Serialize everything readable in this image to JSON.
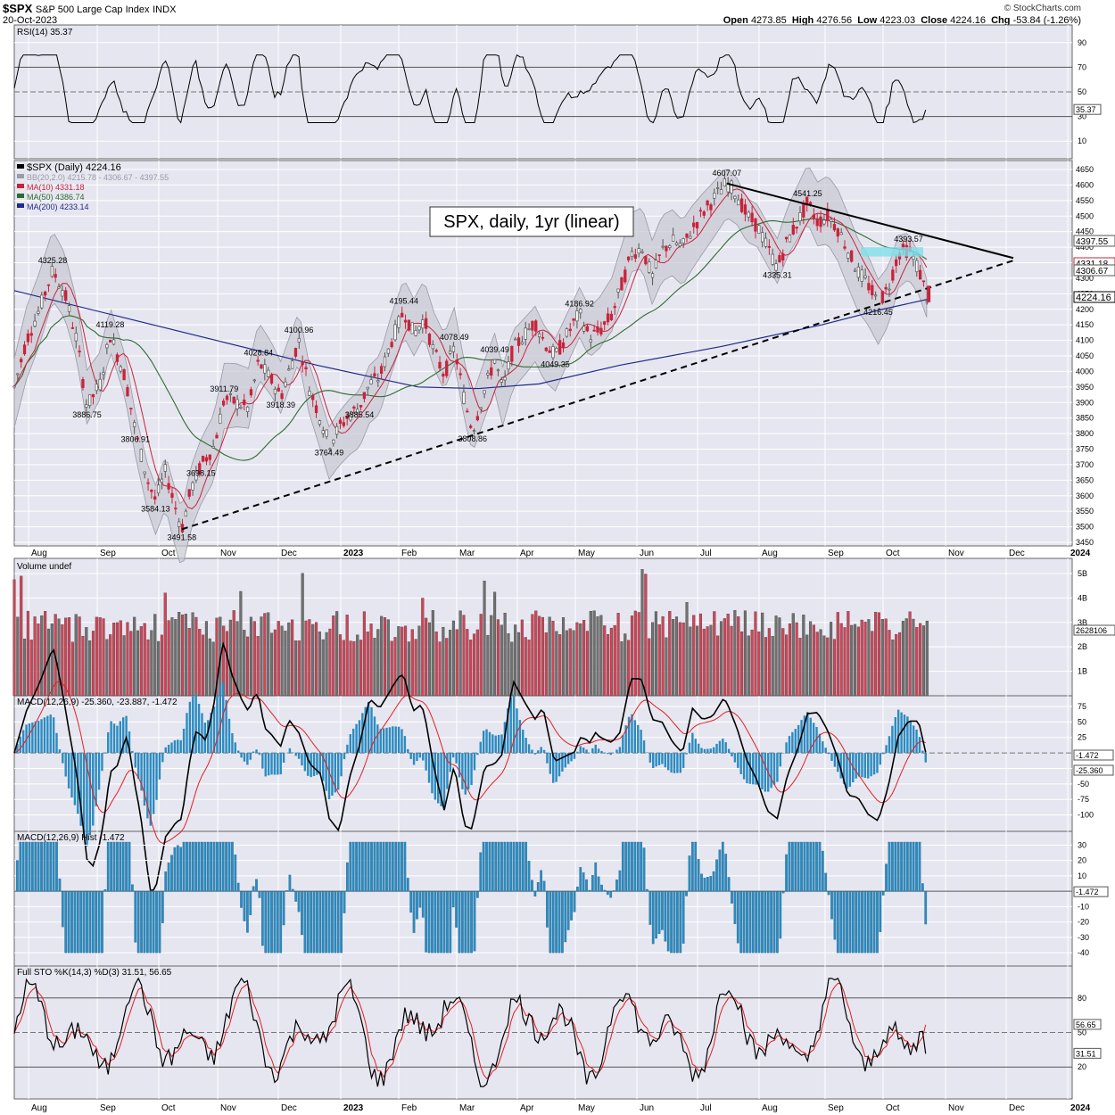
{
  "header": {
    "symbol": "$SPX",
    "description": "S&P 500 Large Cap Index",
    "exchange": "INDX",
    "date": "20-Oct-2023",
    "open_label": "Open",
    "open": "4273.85",
    "high_label": "High",
    "high": "4276.56",
    "low_label": "Low",
    "low": "4223.03",
    "close_label": "Close",
    "close": "4224.16",
    "chg_label": "Chg",
    "chg": "-53.84 (-1.26%)",
    "watermark": "© StockCharts.com"
  },
  "annotation": "SPX, daily, 1yr (linear)",
  "colors": {
    "up": "#555555",
    "down": "#c8233b",
    "ma10": "#c8233b",
    "ma50": "#2e6b2e",
    "ma200": "#1f2a8a",
    "bb": "#9a9aa8",
    "macd": "#000000",
    "signal": "#e02020",
    "hist": "#2b8bc0",
    "panel": "#e6e6f0",
    "grid": "#ffffff"
  },
  "x_labels": [
    "Aug",
    "Sep",
    "Oct",
    "Nov",
    "Dec",
    "2023",
    "Feb",
    "Mar",
    "Apr",
    "May",
    "Jun",
    "Jul",
    "Aug",
    "Sep",
    "Oct",
    "Nov",
    "Dec",
    "2024"
  ],
  "chart_data": {
    "type": "line",
    "title": "$SPX (Daily) 4224.16",
    "price": {
      "ylim": [
        3450,
        4650
      ],
      "ticks": [
        "4650",
        "4600",
        "4550",
        "4500",
        "4450",
        "4400",
        "4350",
        "4300",
        "4250",
        "4200",
        "4150",
        "4100",
        "4050",
        "4000",
        "3950",
        "3900",
        "3850",
        "3800",
        "3750",
        "3700",
        "3650",
        "3600",
        "3550",
        "3500",
        "3450"
      ],
      "path": [
        [
          0,
          3950
        ],
        [
          12,
          4100
        ],
        [
          25,
          4200
        ],
        [
          38,
          4325
        ],
        [
          50,
          4250
        ],
        [
          62,
          4100
        ],
        [
          72,
          3886
        ],
        [
          85,
          3960
        ],
        [
          95,
          4119
        ],
        [
          110,
          3980
        ],
        [
          120,
          3807
        ],
        [
          132,
          3650
        ],
        [
          140,
          3584
        ],
        [
          150,
          3680
        ],
        [
          158,
          3580
        ],
        [
          166,
          3492
        ],
        [
          175,
          3620
        ],
        [
          185,
          3698
        ],
        [
          198,
          3760
        ],
        [
          208,
          3912
        ],
        [
          220,
          3900
        ],
        [
          232,
          3880
        ],
        [
          242,
          4029
        ],
        [
          255,
          3970
        ],
        [
          264,
          3918
        ],
        [
          272,
          4000
        ],
        [
          282,
          4101
        ],
        [
          292,
          3950
        ],
        [
          302,
          3860
        ],
        [
          312,
          3765
        ],
        [
          322,
          3820
        ],
        [
          332,
          3860
        ],
        [
          342,
          3886
        ],
        [
          352,
          3960
        ],
        [
          362,
          3980
        ],
        [
          374,
          4100
        ],
        [
          386,
          4195
        ],
        [
          396,
          4120
        ],
        [
          406,
          4170
        ],
        [
          416,
          4060
        ],
        [
          426,
          3990
        ],
        [
          436,
          4078
        ],
        [
          446,
          3909
        ],
        [
          454,
          3809
        ],
        [
          466,
          3940
        ],
        [
          476,
          4039
        ],
        [
          484,
          3940
        ],
        [
          494,
          4070
        ],
        [
          506,
          4120
        ],
        [
          516,
          4160
        ],
        [
          526,
          4090
        ],
        [
          536,
          4049
        ],
        [
          548,
          4120
        ],
        [
          560,
          4187
        ],
        [
          570,
          4110
        ],
        [
          580,
          4130
        ],
        [
          592,
          4180
        ],
        [
          602,
          4280
        ],
        [
          612,
          4380
        ],
        [
          622,
          4400
        ],
        [
          632,
          4300
        ],
        [
          642,
          4390
        ],
        [
          652,
          4420
        ],
        [
          662,
          4400
        ],
        [
          672,
          4460
        ],
        [
          682,
          4510
        ],
        [
          694,
          4560
        ],
        [
          706,
          4607
        ],
        [
          716,
          4570
        ],
        [
          726,
          4500
        ],
        [
          736,
          4470
        ],
        [
          746,
          4400
        ],
        [
          756,
          4335
        ],
        [
          766,
          4420
        ],
        [
          776,
          4480
        ],
        [
          786,
          4541
        ],
        [
          796,
          4480
        ],
        [
          806,
          4500
        ],
        [
          816,
          4460
        ],
        [
          826,
          4390
        ],
        [
          836,
          4320
        ],
        [
          846,
          4280
        ],
        [
          856,
          4216
        ],
        [
          866,
          4270
        ],
        [
          876,
          4380
        ],
        [
          886,
          4394
        ],
        [
          896,
          4330
        ],
        [
          906,
          4224
        ]
      ],
      "labels": [
        [
          "4325.28",
          38,
          4325
        ],
        [
          "4119.28",
          95,
          4119
        ],
        [
          "3886.75",
          72,
          3886
        ],
        [
          "3806.91",
          120,
          3807
        ],
        [
          "3584.13",
          140,
          3584
        ],
        [
          "3491.58",
          166,
          3492
        ],
        [
          "3698.15",
          185,
          3698
        ],
        [
          "3911.79",
          208,
          3912
        ],
        [
          "4028.84",
          242,
          4029
        ],
        [
          "3918.39",
          264,
          3918
        ],
        [
          "4100.96",
          282,
          4101
        ],
        [
          "3764.49",
          312,
          3765
        ],
        [
          "3885.54",
          342,
          3886
        ],
        [
          "4195.44",
          386,
          4195
        ],
        [
          "4078.49",
          436,
          4078
        ],
        [
          "3808.86",
          454,
          3809
        ],
        [
          "4039.49",
          476,
          4039
        ],
        [
          "4049.35",
          536,
          4049
        ],
        [
          "4186.92",
          560,
          4187
        ],
        [
          "4607.07",
          706,
          4607
        ],
        [
          "4541.25",
          786,
          4541
        ],
        [
          "4335.31",
          756,
          4335
        ],
        [
          "4393.57",
          886,
          4394
        ],
        [
          "4216.45",
          856,
          4216
        ]
      ],
      "legend": [
        "$SPX (Daily) 4224.16",
        "BB(20,2.0) 4215.78 - 4306.67 - 4397.55",
        "MA(10) 4331.18",
        "MA(50) 4386.74",
        "MA(200) 4233.14"
      ],
      "right_values": [
        "4397.55",
        "4331.18",
        "4306.67",
        "4224.16"
      ]
    },
    "rsi": {
      "label": "RSI(14) 35.37",
      "ticks": [
        "90",
        "70",
        "50",
        "30",
        "10"
      ],
      "value": "35.37"
    },
    "volume": {
      "label": "Volume undef",
      "ticks": [
        "5B",
        "4B",
        "3B",
        "2B",
        "1B"
      ],
      "value": "2628106"
    },
    "macd": {
      "label": "MACD(12,26,9) -25.360, -23.887, -1.472",
      "ticks": [
        "75",
        "50",
        "25",
        "0",
        "-25",
        "-50",
        "-75",
        "-100"
      ],
      "values": [
        "-1.472",
        "-25.360"
      ]
    },
    "hist": {
      "label": "MACD(12,26,9) Hist -1.472",
      "ticks": [
        "30",
        "20",
        "10",
        "0",
        "-10",
        "-20",
        "-30",
        "-40"
      ],
      "value": "-1.472"
    },
    "sto": {
      "label": "Full STO %K(14,3) %D(3) 31.51, 56.65",
      "ticks": [
        "80",
        "50",
        "20"
      ],
      "values": [
        "56.65",
        "31.51"
      ]
    }
  }
}
